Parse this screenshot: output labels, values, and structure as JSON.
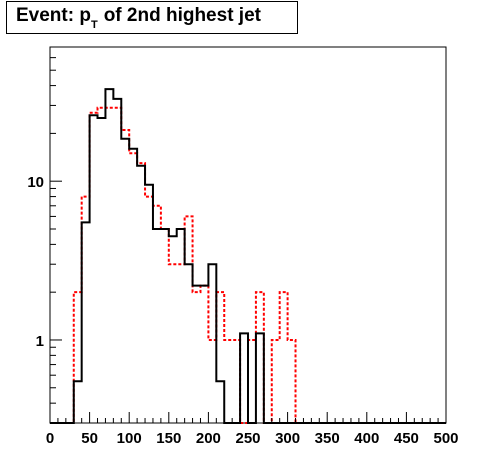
{
  "chart_data": {
    "type": "step",
    "title": {
      "prefix": "Event: p",
      "subscript": "T",
      "suffix": "of 2nd highest jet"
    },
    "xlabel": "",
    "ylabel": "",
    "xlim": [
      0,
      500
    ],
    "ylim": [
      0.3,
      70
    ],
    "yscale": "log",
    "grid": false,
    "legend": "none",
    "x_ticks": [
      0,
      50,
      100,
      150,
      200,
      250,
      300,
      350,
      400,
      450,
      500
    ],
    "y_ticks": [
      1,
      10
    ],
    "bin_width": 10,
    "series": [
      {
        "color": "#000000",
        "linestyle": "solid",
        "bin_edges": [
          0,
          10,
          20,
          30,
          40,
          50,
          60,
          70,
          80,
          90,
          100,
          110,
          120,
          130,
          140,
          150,
          160,
          170,
          180,
          190,
          200,
          210,
          220,
          230,
          240,
          250,
          260,
          270,
          280,
          290,
          300,
          310,
          320,
          330,
          340,
          350,
          360,
          370,
          380,
          390,
          400,
          410,
          420,
          430,
          440,
          450,
          460,
          470,
          480,
          490,
          500
        ],
        "values": [
          0,
          0,
          0,
          0.55,
          5.5,
          26,
          25,
          38,
          33,
          18.5,
          16,
          12.5,
          9.5,
          5,
          5,
          4.5,
          5,
          3,
          2.2,
          2.2,
          3,
          0.55,
          0,
          0,
          1.1,
          0,
          1.1,
          0,
          0,
          0,
          0,
          0,
          0,
          0,
          0,
          0,
          0,
          0,
          0,
          0,
          0,
          0,
          0,
          0,
          0,
          0,
          0,
          0,
          0,
          0
        ]
      },
      {
        "color": "#ff0000",
        "linestyle": "dotted",
        "bin_edges": [
          0,
          10,
          20,
          30,
          40,
          50,
          60,
          70,
          80,
          90,
          100,
          110,
          120,
          130,
          140,
          150,
          160,
          170,
          180,
          190,
          200,
          210,
          220,
          230,
          240,
          250,
          260,
          270,
          280,
          290,
          300,
          310,
          320,
          330,
          340,
          350,
          360,
          370,
          380,
          390,
          400,
          410,
          420,
          430,
          440,
          450,
          460,
          470,
          480,
          490,
          500
        ],
        "values": [
          0,
          0,
          0,
          2,
          8,
          27,
          29,
          29,
          29,
          21,
          15,
          13,
          8,
          7,
          5,
          3,
          3,
          6,
          2,
          2.2,
          1,
          2,
          1,
          1,
          0,
          1,
          2,
          0,
          1,
          2,
          1,
          0,
          0,
          0,
          0,
          0,
          0,
          0,
          0,
          0,
          0,
          0,
          0,
          0,
          0,
          0,
          0,
          0,
          0,
          0
        ]
      }
    ]
  },
  "colors": {
    "axis": "#000000",
    "background": "#ffffff"
  }
}
